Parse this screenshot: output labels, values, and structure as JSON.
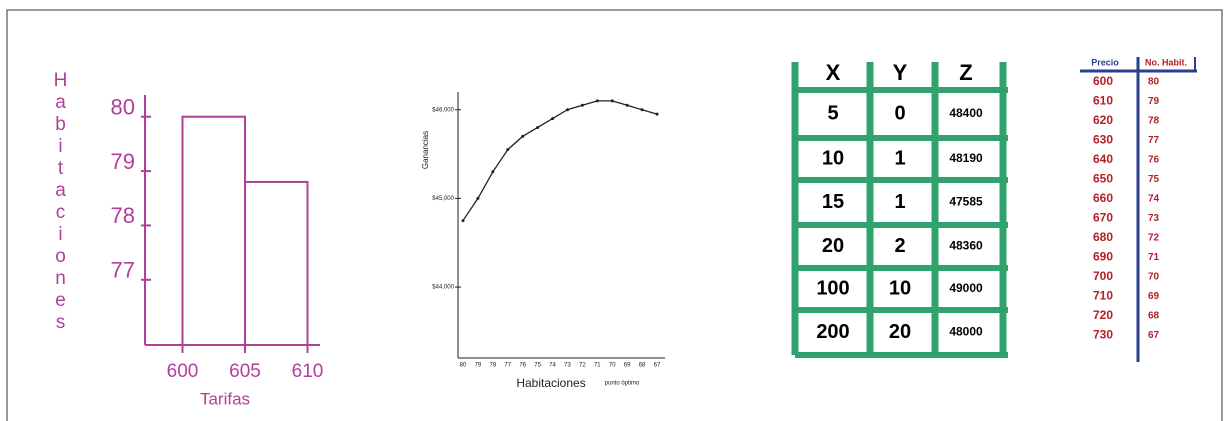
{
  "chart_data": [
    {
      "type": "histogram",
      "ylabel": "Habitaciones",
      "xlabel": "Tarifas",
      "bins": [
        600,
        605,
        610
      ],
      "values": [
        80,
        78.8
      ],
      "color": "#b0409b",
      "xlim": [
        597,
        611
      ],
      "xticks": [
        600,
        605,
        610
      ],
      "ylim": [
        75.8,
        80.4
      ],
      "yticks": [
        77,
        78,
        79,
        80
      ]
    },
    {
      "type": "line",
      "ylabel": "Ganancias",
      "xlabel": "Habitaciones",
      "annotation": "punto óptimo",
      "categories": [
        "80",
        "79",
        "78",
        "77",
        "76",
        "75",
        "74",
        "73",
        "72",
        "71",
        "70",
        "69",
        "68",
        "67"
      ],
      "values": [
        44750,
        45000,
        45300,
        45550,
        45700,
        45800,
        45900,
        46000,
        46050,
        46100,
        46100,
        46050,
        46000,
        45950
      ],
      "color": "#222222",
      "ylim": [
        43200,
        46200
      ],
      "yticks": [
        {
          "value": 44000,
          "label": "$44,000"
        },
        {
          "value": 45000,
          "label": "$45,000"
        },
        {
          "value": 46000,
          "label": "$46,000"
        }
      ]
    }
  ],
  "tables": [
    {
      "columns": [
        "X",
        "Y",
        "Z"
      ],
      "rows": [
        [
          5,
          0,
          48400
        ],
        [
          10,
          1,
          48190
        ],
        [
          15,
          1,
          47585
        ],
        [
          20,
          2,
          48360
        ],
        [
          100,
          10,
          49000
        ],
        [
          200,
          20,
          48000
        ]
      ]
    },
    {
      "columns": [
        "Precio",
        "No. Habit."
      ],
      "rows": [
        [
          600,
          80
        ],
        [
          610,
          79
        ],
        [
          620,
          78
        ],
        [
          630,
          77
        ],
        [
          640,
          76
        ],
        [
          650,
          75
        ],
        [
          660,
          74
        ],
        [
          670,
          73
        ],
        [
          680,
          72
        ],
        [
          690,
          71
        ],
        [
          700,
          70
        ],
        [
          710,
          69
        ],
        [
          720,
          68
        ],
        [
          730,
          67
        ]
      ]
    }
  ]
}
